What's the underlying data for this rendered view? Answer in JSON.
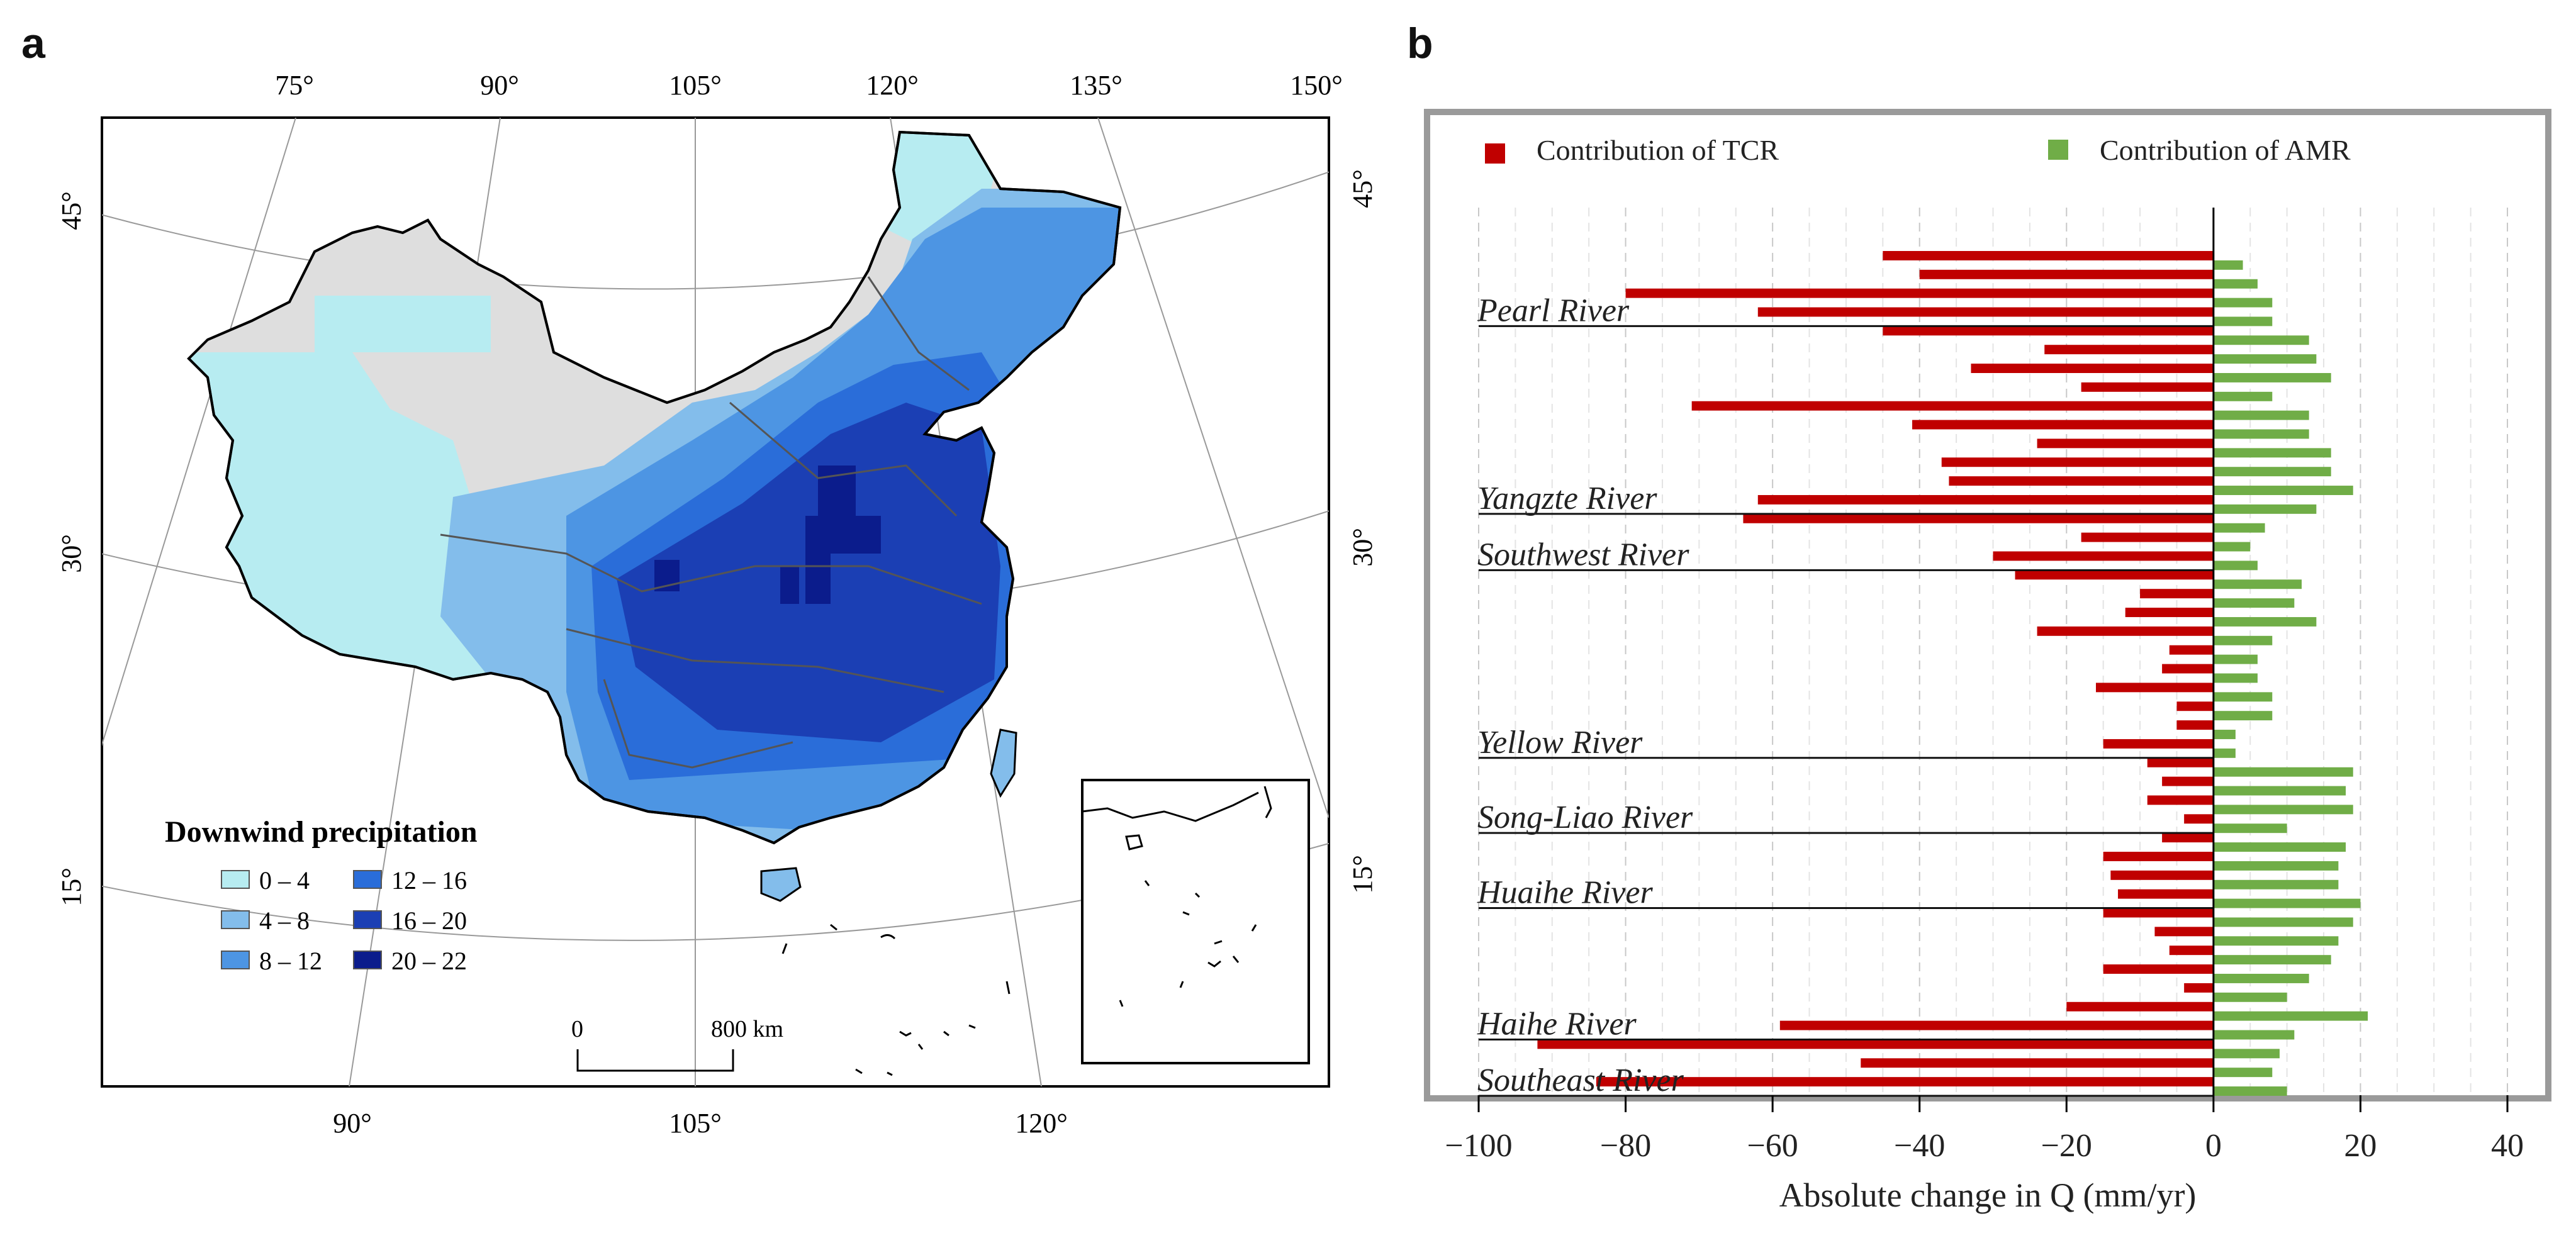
{
  "panels": {
    "a": "a",
    "b": "b"
  },
  "colors": {
    "tcr": "#C00000",
    "amr": "#70AD47",
    "land_gray": "#DEDEDE",
    "bins": [
      "#B7ECF1",
      "#83BDEB",
      "#4D95E3",
      "#2A6DD9",
      "#1B3FB4",
      "#0B1C8C"
    ]
  },
  "map": {
    "top_lon_labels": [
      "75°",
      "90°",
      "105°",
      "120°",
      "135°",
      "150°"
    ],
    "bottom_lon_labels": [
      "90°",
      "105°",
      "120°"
    ],
    "left_lat_labels": [
      "45°",
      "30°",
      "15°"
    ],
    "right_lat_labels": [
      "45°",
      "30°",
      "15°"
    ],
    "legend": {
      "title": "Downwind precipitation",
      "bins": [
        "0 – 4",
        "4 – 8",
        "8 – 12",
        "12 – 16",
        "16 – 20",
        "20 – 22"
      ]
    },
    "scale_bar": {
      "start": "0",
      "end": "800 km"
    }
  },
  "chart_data": {
    "type": "bar",
    "orientation": "horizontal",
    "xlabel": "Absolute change in Q (mm/yr)",
    "xlim": [
      -100,
      40
    ],
    "xticks": [
      -100,
      -80,
      -60,
      -40,
      -20,
      0,
      20,
      40
    ],
    "xtick_labels": [
      "−100",
      "−80",
      "−60",
      "−40",
      "−20",
      "0",
      "20",
      "40"
    ],
    "legend": [
      "Contribution of TCR",
      "Contribution of AMR"
    ],
    "series": [
      {
        "name": "Contribution of TCR",
        "values": [
          -45,
          -40,
          -80,
          -62,
          -45,
          -23,
          -33,
          -18,
          -71,
          -41,
          -24,
          -37,
          -36,
          -62,
          -64,
          -18,
          -30,
          -27,
          -10,
          -12,
          -24,
          -6,
          -7,
          -16,
          -5,
          -5,
          -15,
          -9,
          -7,
          -9,
          -4,
          -7,
          -15,
          -14,
          -13,
          -15,
          -8,
          -6,
          -15,
          -4,
          -20,
          -59,
          -92,
          -48,
          -84
        ]
      },
      {
        "name": "Contribution of AMR",
        "values": [
          4,
          6,
          8,
          8,
          13,
          14,
          16,
          8,
          13,
          13,
          16,
          16,
          19,
          14,
          7,
          5,
          6,
          12,
          11,
          14,
          8,
          6,
          6,
          8,
          8,
          3,
          3,
          19,
          18,
          19,
          10,
          18,
          17,
          17,
          20,
          19,
          17,
          16,
          13,
          10,
          21,
          11,
          9,
          8,
          10
        ]
      }
    ],
    "basin_labels": [
      "Pearl River",
      "Yangzte River",
      "Southwest River",
      "Yellow River",
      "Song-Liao River",
      "Huaihe River",
      "Haihe River",
      "Southeast River"
    ],
    "basin_separator_after_index": [
      3,
      13,
      16,
      26,
      30,
      34,
      41,
      44
    ]
  }
}
